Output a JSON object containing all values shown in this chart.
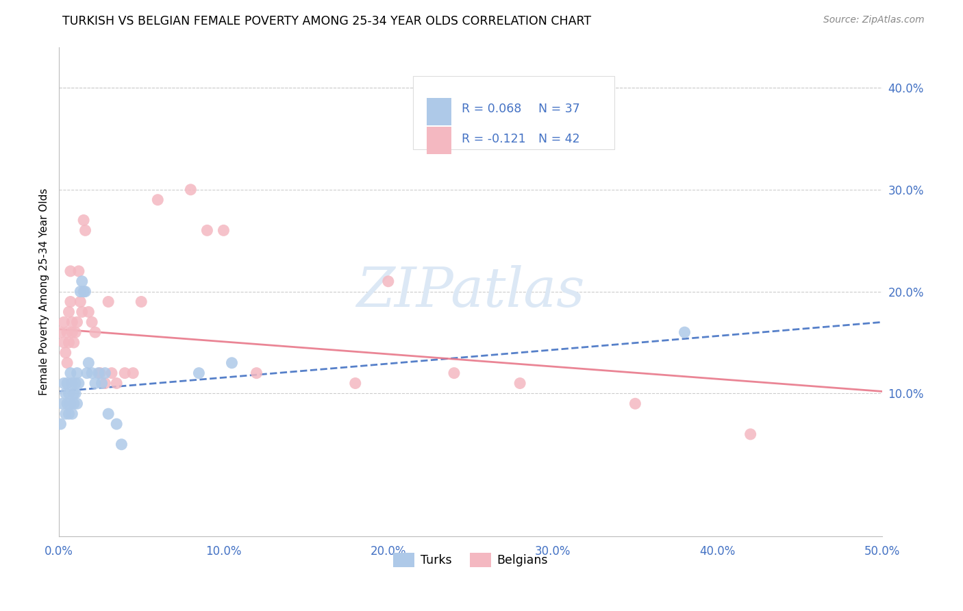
{
  "title": "TURKISH VS BELGIAN FEMALE POVERTY AMONG 25-34 YEAR OLDS CORRELATION CHART",
  "source": "Source: ZipAtlas.com",
  "ylabel": "Female Poverty Among 25-34 Year Olds",
  "xlim": [
    0.0,
    0.5
  ],
  "ylim": [
    -0.04,
    0.44
  ],
  "xticks": [
    0.0,
    0.1,
    0.2,
    0.3,
    0.4,
    0.5
  ],
  "yticks_right": [
    0.1,
    0.2,
    0.3,
    0.4
  ],
  "legend_r_turks": "R = 0.068",
  "legend_n_turks": "N = 37",
  "legend_r_belgians": "R = -0.121",
  "legend_n_belgians": "N = 42",
  "color_turks": "#aec9e8",
  "color_belgians": "#f4b8c1",
  "color_line_turks": "#4472c4",
  "color_line_belgians": "#e8788a",
  "color_axis_ticks": "#4472c4",
  "watermark_color": "#dce8f5",
  "turks_x": [
    0.001,
    0.002,
    0.003,
    0.004,
    0.004,
    0.005,
    0.005,
    0.006,
    0.006,
    0.007,
    0.007,
    0.008,
    0.008,
    0.009,
    0.009,
    0.01,
    0.01,
    0.011,
    0.011,
    0.012,
    0.013,
    0.014,
    0.015,
    0.016,
    0.017,
    0.018,
    0.02,
    0.022,
    0.024,
    0.026,
    0.028,
    0.03,
    0.035,
    0.038,
    0.085,
    0.105,
    0.38
  ],
  "turks_y": [
    0.07,
    0.09,
    0.11,
    0.08,
    0.1,
    0.09,
    0.11,
    0.08,
    0.1,
    0.12,
    0.09,
    0.11,
    0.08,
    0.1,
    0.09,
    0.11,
    0.1,
    0.09,
    0.12,
    0.11,
    0.2,
    0.21,
    0.2,
    0.2,
    0.12,
    0.13,
    0.12,
    0.11,
    0.12,
    0.11,
    0.12,
    0.08,
    0.07,
    0.05,
    0.12,
    0.13,
    0.16
  ],
  "belgians_x": [
    0.001,
    0.003,
    0.003,
    0.004,
    0.005,
    0.005,
    0.006,
    0.006,
    0.007,
    0.007,
    0.008,
    0.008,
    0.009,
    0.01,
    0.011,
    0.012,
    0.013,
    0.014,
    0.015,
    0.016,
    0.018,
    0.02,
    0.022,
    0.025,
    0.028,
    0.03,
    0.032,
    0.035,
    0.04,
    0.045,
    0.05,
    0.06,
    0.08,
    0.09,
    0.1,
    0.12,
    0.18,
    0.2,
    0.24,
    0.28,
    0.35,
    0.42
  ],
  "belgians_y": [
    0.16,
    0.15,
    0.17,
    0.14,
    0.13,
    0.16,
    0.15,
    0.18,
    0.22,
    0.19,
    0.17,
    0.16,
    0.15,
    0.16,
    0.17,
    0.22,
    0.19,
    0.18,
    0.27,
    0.26,
    0.18,
    0.17,
    0.16,
    0.12,
    0.11,
    0.19,
    0.12,
    0.11,
    0.12,
    0.12,
    0.19,
    0.29,
    0.3,
    0.26,
    0.26,
    0.12,
    0.11,
    0.21,
    0.12,
    0.11,
    0.09,
    0.06
  ],
  "trendline_turks_y0": 0.102,
  "trendline_turks_y1": 0.17,
  "trendline_belgians_y0": 0.163,
  "trendline_belgians_y1": 0.102
}
